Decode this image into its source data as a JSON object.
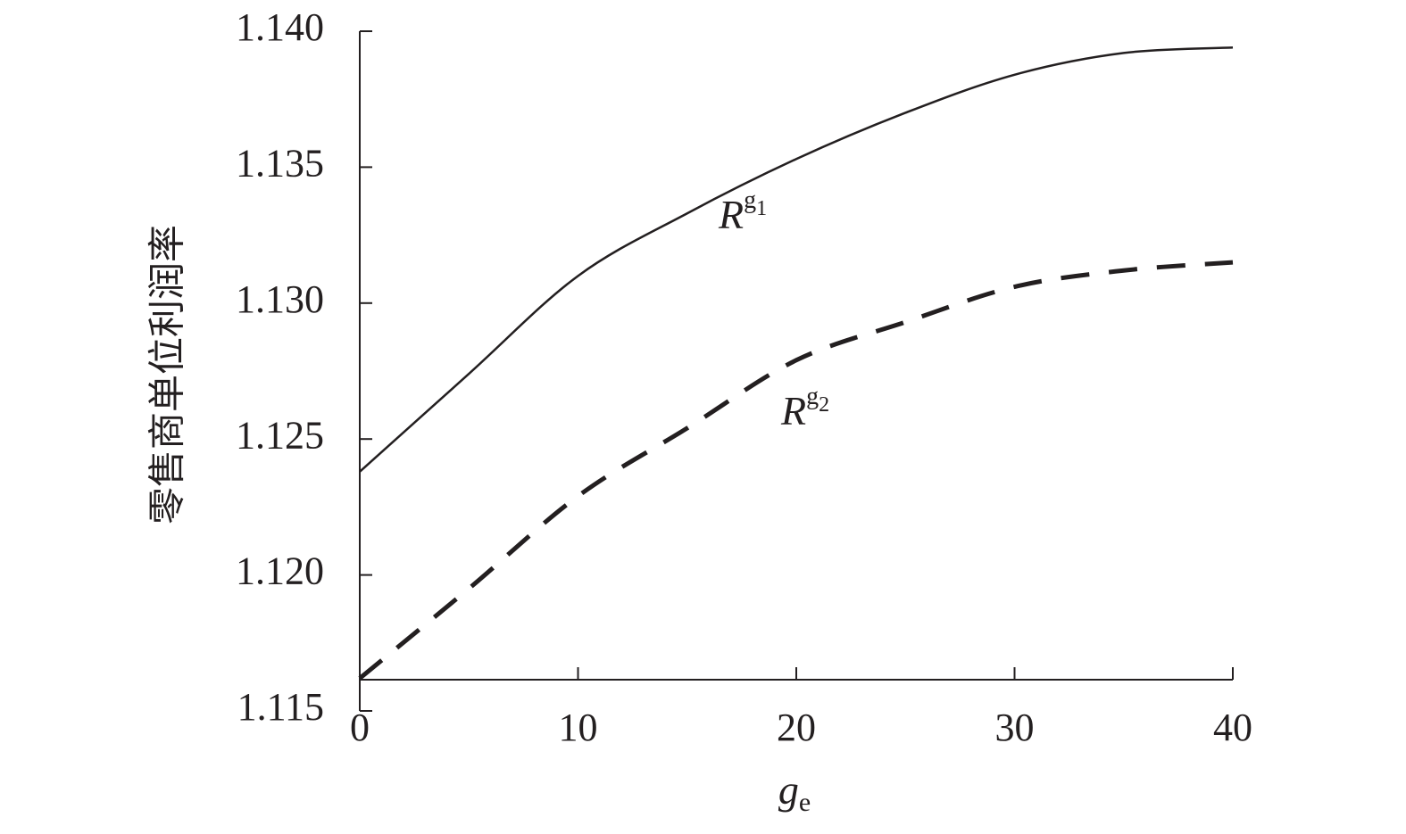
{
  "chart_data": {
    "type": "line",
    "x_label": {
      "text": "g",
      "sub": "e"
    },
    "y_label": "零售商单位利润率",
    "x": [
      0,
      5,
      10,
      15,
      20,
      25,
      30,
      35,
      40
    ],
    "series": [
      {
        "name": {
          "text": "R",
          "sup": "g",
          "sub": "1"
        },
        "color": "#231f20",
        "dash": false,
        "values": [
          1.1238,
          1.1274,
          1.131,
          1.1333,
          1.1353,
          1.137,
          1.1384,
          1.1392,
          1.1394
        ]
      },
      {
        "name": {
          "text": "R",
          "sup": "g",
          "sub": "2"
        },
        "color": "#231f20",
        "dash": true,
        "values": [
          1.1162,
          1.1195,
          1.1229,
          1.1254,
          1.1279,
          1.1293,
          1.1306,
          1.1312,
          1.1315
        ]
      }
    ],
    "xlim": [
      0,
      40
    ],
    "xticks": [
      0,
      10,
      20,
      30,
      40
    ],
    "ylim": [
      1.115,
      1.14
    ],
    "yticks": [
      {
        "value": 1.115,
        "label": "1.115"
      },
      {
        "value": 1.12,
        "label": "1.120"
      },
      {
        "value": 1.125,
        "label": "1.125"
      },
      {
        "value": 1.13,
        "label": "1.130"
      },
      {
        "value": 1.135,
        "label": "1.135"
      },
      {
        "value": 1.14,
        "label": "1.140"
      }
    ]
  }
}
